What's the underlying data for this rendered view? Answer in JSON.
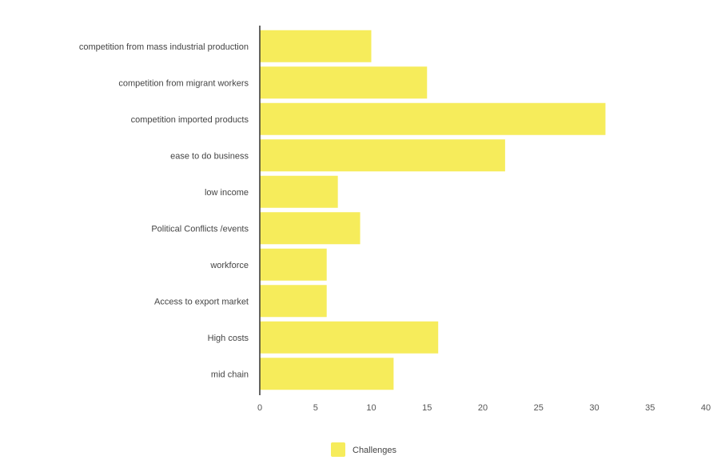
{
  "chart_data": {
    "type": "bar",
    "orientation": "horizontal",
    "categories": [
      "competition from mass industrial production",
      "competition from migrant workers",
      "competition imported products",
      "ease to do business",
      "low income",
      "Political Conflicts /events",
      "workforce",
      "Access to export market",
      "High costs",
      "mid chain"
    ],
    "series": [
      {
        "name": "Challenges",
        "values": [
          10,
          15,
          31,
          22,
          7,
          9,
          6,
          6,
          16,
          12
        ],
        "color": "#f6ec5b"
      }
    ],
    "xticks": [
      "0",
      "5",
      "10",
      "15",
      "20",
      "25",
      "30",
      "35",
      "40"
    ],
    "xlim": [
      0,
      40
    ],
    "grid": false,
    "legend_position": "bottom-center"
  }
}
